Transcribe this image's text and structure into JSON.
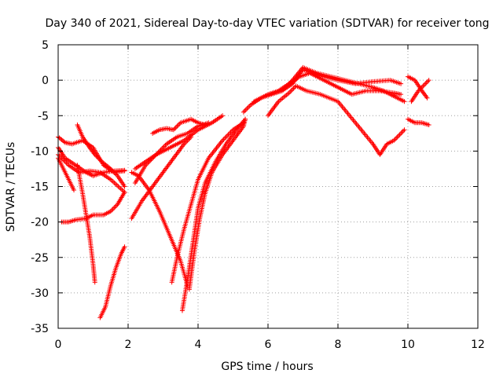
{
  "chart_data": {
    "type": "scatter",
    "title": "Day 340 of 2021, Sidereal Day-to-day VTEC variation (SDTVAR) for receiver tong",
    "xlabel": "GPS time / hours",
    "ylabel": "SDTVAR / TECUs",
    "xlim": [
      0,
      12
    ],
    "ylim": [
      -35,
      5
    ],
    "x_ticks": [
      "0",
      "2",
      "4",
      "6",
      "8",
      "10",
      "12"
    ],
    "y_ticks": [
      "5",
      "0",
      "-5",
      "-10",
      "-15",
      "-20",
      "-25",
      "-30",
      "-35"
    ],
    "grid": true,
    "marker": "plus",
    "color": "#ff0000",
    "series": [
      {
        "x": [
          0.0,
          0.2,
          0.4,
          0.7,
          1.0,
          1.3,
          1.6,
          1.9
        ],
        "y": [
          -8,
          -8.8,
          -9.0,
          -8.5,
          -9.5,
          -12.0,
          -13.0,
          -12.8
        ]
      },
      {
        "x": [
          0.0,
          0.2,
          0.5,
          0.8,
          1.0,
          1.3,
          1.6,
          1.9
        ],
        "y": [
          -9.5,
          -11.0,
          -12.0,
          -13.0,
          -13.5,
          -13.0,
          -12.8,
          -12.7
        ]
      },
      {
        "x": [
          0.0,
          0.3,
          0.6,
          0.9,
          1.2,
          1.5,
          1.9
        ],
        "y": [
          -10.5,
          -12.0,
          -13.0,
          -12.8,
          -13.0,
          -14.0,
          -15.8
        ]
      },
      {
        "x": [
          0.0,
          0.15,
          0.3,
          0.45
        ],
        "y": [
          -11.0,
          -12.5,
          -14.0,
          -15.5
        ]
      },
      {
        "x": [
          0.55,
          0.7,
          0.9,
          1.05,
          1.25,
          1.5,
          1.7,
          1.9
        ],
        "y": [
          -6.3,
          -8.0,
          -9.5,
          -10.5,
          -11.5,
          -12.5,
          -13.5,
          -15.0
        ]
      },
      {
        "x": [
          0.1,
          0.3,
          0.5,
          0.8,
          1.0,
          1.3,
          1.5,
          1.7,
          1.9
        ],
        "y": [
          -20.0,
          -20.0,
          -19.7,
          -19.5,
          -19.0,
          -19.0,
          -18.5,
          -17.5,
          -15.8
        ]
      },
      {
        "x": [
          0.55,
          0.7,
          0.8,
          0.9,
          1.0,
          1.05
        ],
        "y": [
          -12.0,
          -16.0,
          -19.0,
          -22.0,
          -26.0,
          -28.5
        ]
      },
      {
        "x": [
          1.2,
          1.35,
          1.5,
          1.65,
          1.8,
          1.9
        ],
        "y": [
          -33.5,
          -32.0,
          -29.0,
          -26.5,
          -24.5,
          -23.5
        ]
      },
      {
        "x": [
          2.1,
          2.3,
          2.6,
          2.9,
          3.2,
          3.5,
          3.7
        ],
        "y": [
          -13.0,
          -13.5,
          -15.5,
          -18.5,
          -22.0,
          -25.5,
          -29.0
        ]
      },
      {
        "x": [
          2.2,
          2.5,
          2.8,
          3.2,
          3.6,
          4.0,
          4.4,
          4.7
        ],
        "y": [
          -12.5,
          -11.5,
          -10.5,
          -9.5,
          -8.5,
          -7.0,
          -6.0,
          -5.0
        ]
      },
      {
        "x": [
          2.2,
          2.5,
          2.8,
          3.1,
          3.4,
          3.7,
          4.0,
          4.3
        ],
        "y": [
          -14.5,
          -12.0,
          -10.5,
          -9.0,
          -8.0,
          -7.5,
          -6.5,
          -6.0
        ]
      },
      {
        "x": [
          2.1,
          2.4,
          2.7,
          3.0,
          3.3,
          3.6,
          3.8
        ],
        "y": [
          -19.5,
          -17.0,
          -15.0,
          -13.0,
          -11.0,
          -9.0,
          -8.0
        ]
      },
      {
        "x": [
          2.7,
          2.9,
          3.1,
          3.3,
          3.5,
          3.8,
          4.0,
          4.2
        ],
        "y": [
          -7.5,
          -7.0,
          -6.8,
          -7.0,
          -6.0,
          -5.5,
          -6.0,
          -6.3
        ]
      },
      {
        "x": [
          3.25,
          3.4,
          3.6,
          3.8,
          4.0,
          4.3,
          4.7,
          5.0,
          5.3
        ],
        "y": [
          -28.5,
          -25.0,
          -21.0,
          -17.5,
          -14.0,
          -11.0,
          -8.5,
          -7.0,
          -6.0
        ]
      },
      {
        "x": [
          3.55,
          3.7,
          3.85,
          4.0,
          4.2,
          4.5,
          4.8,
          5.1,
          5.35
        ],
        "y": [
          -32.5,
          -28.0,
          -23.0,
          -18.0,
          -14.5,
          -11.5,
          -9.0,
          -7.0,
          -5.5
        ]
      },
      {
        "x": [
          3.75,
          3.9,
          4.05,
          4.2,
          4.4,
          4.7,
          5.0,
          5.3,
          5.35
        ],
        "y": [
          -29.5,
          -24.0,
          -19.5,
          -16.0,
          -13.0,
          -10.5,
          -8.5,
          -6.5,
          -5.5
        ]
      },
      {
        "x": [
          5.3,
          5.5,
          5.8,
          6.1,
          6.4,
          6.7,
          7.0,
          7.3,
          7.6,
          8.0,
          8.5,
          9.0,
          9.5,
          9.8
        ],
        "y": [
          -4.5,
          -3.5,
          -2.5,
          -2.0,
          -1.5,
          -0.5,
          1.5,
          1.0,
          0.5,
          0.0,
          -0.5,
          -0.2,
          0.0,
          -0.5
        ]
      },
      {
        "x": [
          6.0,
          6.3,
          6.6,
          6.9,
          7.2,
          7.6,
          8.0,
          8.4,
          8.8,
          9.2,
          9.6,
          9.8
        ],
        "y": [
          -2.0,
          -1.5,
          -0.5,
          0.5,
          1.0,
          0.0,
          -1.0,
          -2.0,
          -1.5,
          -1.5,
          -1.8,
          -2.0
        ]
      },
      {
        "x": [
          5.6,
          6.0,
          6.4,
          6.7,
          7.0,
          7.4,
          7.8,
          8.2,
          8.6,
          9.0,
          9.3,
          9.5,
          9.7,
          9.9
        ],
        "y": [
          -3.0,
          -2.0,
          -1.5,
          0.0,
          1.8,
          1.0,
          0.5,
          0.0,
          -0.5,
          -1.0,
          -1.5,
          -2.0,
          -2.5,
          -3.0
        ]
      },
      {
        "x": [
          6.0,
          6.3,
          6.6,
          6.8,
          7.1,
          7.5,
          8.0,
          8.5,
          9.0,
          9.2,
          9.4,
          9.6,
          9.9
        ],
        "y": [
          -5.0,
          -3.0,
          -1.8,
          -0.8,
          -1.5,
          -2.0,
          -3.0,
          -6.0,
          -9.0,
          -10.5,
          -9.0,
          -8.5,
          -7.0
        ]
      },
      {
        "x": [
          10.1,
          10.3,
          10.5,
          10.6
        ],
        "y": [
          -3.0,
          -1.5,
          -0.5,
          0.0
        ]
      },
      {
        "x": [
          10.0,
          10.2,
          10.4,
          10.55
        ],
        "y": [
          0.5,
          0.0,
          -1.5,
          -2.5
        ]
      },
      {
        "x": [
          10.0,
          10.2,
          10.4,
          10.6
        ],
        "y": [
          -5.5,
          -6.0,
          -6.0,
          -6.3
        ]
      }
    ]
  }
}
